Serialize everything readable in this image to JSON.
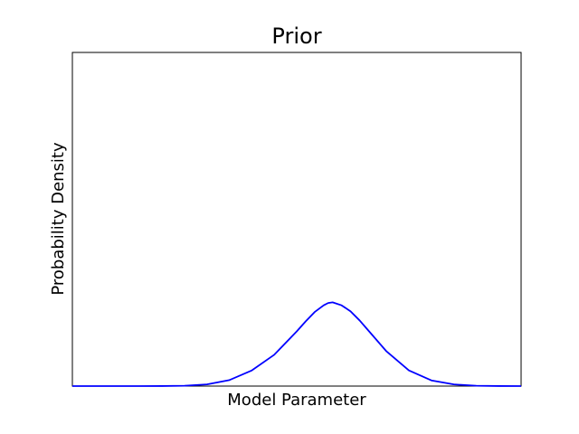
{
  "chart_data": {
    "type": "line",
    "title": "Prior",
    "xlabel": "Model Parameter",
    "ylabel": "Probability Density",
    "xlim": [
      0,
      1
    ],
    "ylim": [
      0,
      1
    ],
    "xticks": [],
    "yticks": [],
    "grid": false,
    "series": [
      {
        "color": "#0000ff",
        "x": [
          0.0,
          0.05,
          0.1,
          0.15,
          0.2,
          0.25,
          0.3,
          0.35,
          0.4,
          0.45,
          0.5,
          0.52,
          0.54,
          0.56,
          0.57,
          0.58,
          0.6,
          0.62,
          0.64,
          0.66,
          0.7,
          0.75,
          0.8,
          0.85,
          0.9,
          0.95,
          1.0
        ],
        "y": [
          0.0,
          0.0,
          0.0,
          0.0,
          0.0002,
          0.001,
          0.005,
          0.018,
          0.047,
          0.094,
          0.164,
          0.194,
          0.222,
          0.242,
          0.249,
          0.251,
          0.242,
          0.224,
          0.197,
          0.166,
          0.104,
          0.047,
          0.017,
          0.005,
          0.001,
          0.0002,
          0.0
        ]
      }
    ]
  }
}
